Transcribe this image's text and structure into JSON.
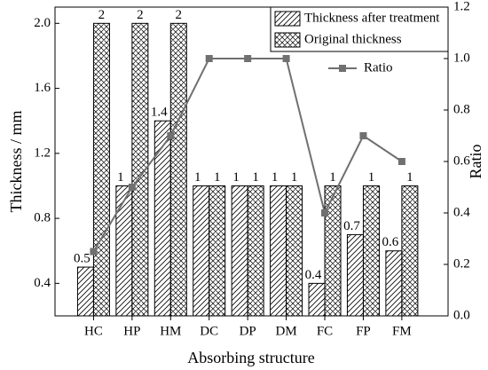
{
  "chart_data": {
    "type": "bar",
    "x_label": "Absorbing structure",
    "y_label": "Thickness / mm",
    "y2_label": "Ratio",
    "categories": [
      "HC",
      "HP",
      "HM",
      "DC",
      "DP",
      "DM",
      "FC",
      "FP",
      "FM"
    ],
    "series": [
      {
        "name": "Thickness after treatment",
        "color": "#000000",
        "hatch": "diagonal",
        "values": [
          0.5,
          1,
          1.4,
          1,
          1,
          1,
          0.4,
          0.7,
          0.6
        ]
      },
      {
        "name": "Original thickness",
        "color": "#000000",
        "hatch": "cross",
        "values": [
          2,
          2,
          2,
          1,
          1,
          1,
          1,
          1,
          1
        ]
      },
      {
        "name": "Ratio",
        "type": "line",
        "color": "#707070",
        "axis": "y2",
        "values": [
          0.25,
          0.5,
          0.7,
          1,
          1,
          1,
          0.4,
          0.7,
          0.6
        ]
      }
    ],
    "ylim": [
      0.2,
      2.1
    ],
    "yticks": [
      0.4,
      0.8,
      1.2,
      1.6,
      {
        "value": 2,
        "label": "2.0"
      }
    ],
    "y2lim": [
      0,
      1.2
    ],
    "y2ticks": [
      {
        "value": 0,
        "label": "0.0"
      },
      0.2,
      0.4,
      0.6,
      0.8,
      {
        "value": 1,
        "label": "1.0"
      },
      1.2
    ],
    "legend": "upper right",
    "show_value_labels": true
  }
}
